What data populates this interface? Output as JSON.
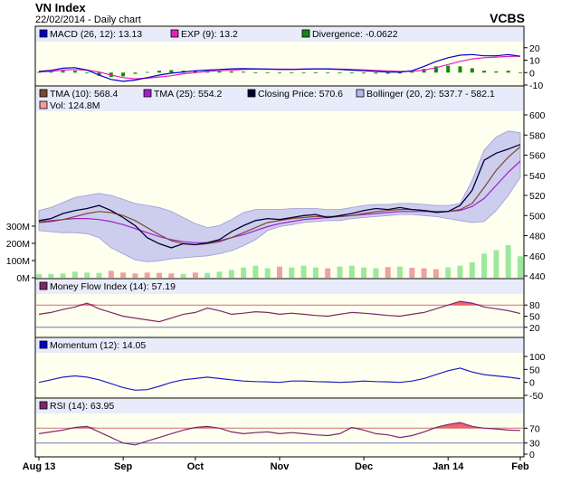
{
  "header": {
    "title": "VN Index",
    "subtitle": "22/02/2014 - Daily chart",
    "brand": "VCBS"
  },
  "colors": {
    "plot_bg": "#fffff0",
    "legend_bg": "#e8ecfa",
    "tma10": "#7b4a2a",
    "tma25": "#a020c8",
    "close": "#000033",
    "bollinger": "#b8b8ec",
    "vol_up": "#9ce89c",
    "vol_down": "#f0a0a0",
    "macd": "#0000cc",
    "exp": "#e020c0",
    "divergence": "#118811",
    "indicator": "#2020a0",
    "zone_fill": "#f06070",
    "level_line": "#d07070"
  },
  "chart_data": [
    {
      "type": "bar",
      "panel": "macd",
      "legend": [
        {
          "icon": "macd-swatch",
          "color": "#0000cc",
          "label": "MACD (26, 12): 13.13"
        },
        {
          "icon": "exp-swatch",
          "color": "#e020c0",
          "label": "EXP (9): 13.2"
        },
        {
          "icon": "divergence-swatch",
          "color": "#118811",
          "label": "Divergence: -0.0622"
        }
      ],
      "y_ticks": [
        "20",
        "10",
        "0",
        "-10"
      ],
      "ylim": [
        -10,
        22
      ],
      "series": [
        {
          "name": "MACD (26, 12)",
          "values": [
            1.0,
            1.8,
            3.5,
            4.0,
            2.0,
            -2.0,
            -5.5,
            -7.0,
            -6.0,
            -4.0,
            -2.0,
            -0.5,
            0.5,
            1.5,
            2.0,
            2.5,
            3.0,
            3.2,
            3.0,
            2.8,
            2.5,
            2.5,
            2.8,
            3.0,
            3.0,
            2.5,
            2.0,
            1.5,
            1.0,
            0.5,
            0.3,
            1.5,
            5.0,
            9.0,
            12.0,
            14.0,
            14.5,
            13.5,
            13.5,
            14.5,
            13.13
          ]
        },
        {
          "name": "EXP (9)",
          "values": [
            0.5,
            1.0,
            2.0,
            2.5,
            2.0,
            0.5,
            -2.0,
            -4.0,
            -5.0,
            -4.5,
            -3.5,
            -2.5,
            -1.0,
            0.0,
            1.0,
            1.5,
            2.0,
            2.5,
            2.8,
            2.9,
            2.8,
            2.7,
            2.8,
            2.9,
            3.0,
            2.9,
            2.6,
            2.2,
            1.8,
            1.4,
            1.0,
            1.0,
            2.0,
            4.0,
            6.5,
            9.0,
            11.0,
            12.0,
            12.5,
            13.0,
            13.2
          ]
        },
        {
          "name": "Divergence",
          "values": [
            0.5,
            0.8,
            1.5,
            1.5,
            0.0,
            -2.5,
            -3.5,
            -3.0,
            -1.0,
            0.5,
            1.5,
            2.0,
            1.5,
            1.5,
            1.0,
            1.0,
            1.0,
            0.7,
            0.2,
            -0.1,
            -0.3,
            -0.2,
            0.0,
            0.1,
            0.0,
            -0.4,
            -0.6,
            -0.7,
            -0.8,
            -0.9,
            -0.7,
            0.5,
            3.0,
            5.0,
            5.5,
            5.0,
            3.5,
            1.5,
            1.0,
            1.5,
            -0.0622
          ]
        }
      ]
    },
    {
      "type": "line",
      "panel": "price",
      "legend": [
        {
          "icon": "tma10-swatch",
          "color": "#7b4a2a",
          "label": "TMA (10): 568.4"
        },
        {
          "icon": "tma25-swatch",
          "color": "#a020c8",
          "label": "TMA (25): 554.2"
        },
        {
          "icon": "close-swatch",
          "color": "#000033",
          "label": "Closing Price: 570.6"
        },
        {
          "icon": "bollinger-swatch",
          "color": "#b8b8ec",
          "label": "Bollinger (20, 2): 537.7 - 582.1"
        },
        {
          "icon": "vol-swatch",
          "color": "#f0a0a0",
          "label": "Vol: 124.8M"
        }
      ],
      "y_ticks": [
        "600",
        "580",
        "560",
        "540",
        "520",
        "500",
        "480",
        "460",
        "440"
      ],
      "ylim": [
        440,
        600
      ],
      "vol_ticks": [
        "300M",
        "200M",
        "100M",
        "0M"
      ],
      "vol_lim": [
        0,
        300
      ],
      "series": [
        {
          "name": "Closing Price",
          "values": [
            495,
            497,
            502,
            505,
            507,
            510,
            505,
            498,
            490,
            478,
            472,
            468,
            472,
            471,
            473,
            476,
            484,
            490,
            495,
            497,
            496,
            498,
            500,
            501,
            498,
            500,
            502,
            505,
            507,
            506,
            508,
            506,
            505,
            503,
            504,
            510,
            525,
            555,
            562,
            566,
            570.6
          ]
        },
        {
          "name": "TMA (10)",
          "values": [
            493,
            494,
            496,
            499,
            502,
            504,
            503,
            500,
            495,
            488,
            481,
            475,
            472,
            471,
            472,
            474,
            478,
            483,
            488,
            493,
            495,
            497,
            498,
            499,
            499,
            499,
            500,
            502,
            504,
            505,
            506,
            506,
            505,
            504,
            504,
            506,
            512,
            528,
            545,
            558,
            568.4
          ]
        },
        {
          "name": "TMA (25)",
          "values": [
            494,
            495,
            496,
            497,
            497,
            496,
            494,
            491,
            487,
            483,
            479,
            476,
            474,
            473,
            473,
            475,
            478,
            481,
            485,
            489,
            492,
            494,
            496,
            497,
            498,
            499,
            500,
            501,
            502,
            503,
            504,
            504,
            504,
            504,
            504,
            505,
            509,
            517,
            530,
            543,
            554.2
          ]
        },
        {
          "name": "Bollinger Upper",
          "values": [
            505,
            508,
            513,
            518,
            520,
            522,
            520,
            516,
            512,
            510,
            508,
            504,
            498,
            492,
            488,
            490,
            496,
            503,
            506,
            506,
            506,
            507,
            507,
            507,
            506,
            506,
            508,
            510,
            511,
            511,
            512,
            512,
            511,
            510,
            510,
            512,
            535,
            565,
            578,
            584,
            582.1
          ]
        },
        {
          "name": "Bollinger Lower",
          "values": [
            485,
            484,
            483,
            483,
            482,
            478,
            468,
            462,
            456,
            454,
            455,
            457,
            458,
            459,
            460,
            462,
            465,
            470,
            476,
            485,
            489,
            491,
            493,
            494,
            495,
            495,
            497,
            498,
            499,
            500,
            501,
            501,
            500,
            499,
            497,
            495,
            493,
            494,
            505,
            520,
            537.7
          ]
        },
        {
          "name": "Vol",
          "values": [
            20,
            22,
            25,
            35,
            30,
            28,
            40,
            30,
            25,
            30,
            28,
            25,
            22,
            30,
            28,
            35,
            45,
            60,
            70,
            55,
            65,
            60,
            70,
            60,
            55,
            65,
            70,
            60,
            55,
            62,
            65,
            58,
            55,
            50,
            60,
            70,
            90,
            140,
            160,
            190,
            124.8
          ]
        }
      ]
    },
    {
      "type": "line",
      "panel": "mfi",
      "legend": [
        {
          "icon": "mfi-swatch",
          "color": "#7a2a6a",
          "label": "Money Flow Index (14): 57.19"
        }
      ],
      "y_ticks": [
        "80",
        "50",
        "20"
      ],
      "ylim": [
        0,
        100
      ],
      "levels": [
        80,
        20
      ],
      "series": [
        {
          "name": "Money Flow Index (14)",
          "values": [
            55,
            60,
            68,
            75,
            85,
            70,
            60,
            50,
            45,
            40,
            35,
            45,
            55,
            60,
            72,
            65,
            55,
            58,
            62,
            60,
            55,
            58,
            55,
            52,
            50,
            55,
            60,
            58,
            55,
            52,
            50,
            55,
            60,
            70,
            80,
            90,
            85,
            75,
            70,
            65,
            57.19
          ]
        }
      ]
    },
    {
      "type": "line",
      "panel": "momentum",
      "legend": [
        {
          "icon": "momentum-swatch",
          "color": "#0000cc",
          "label": "Momentum (12): 14.05"
        }
      ],
      "y_ticks": [
        "100",
        "50",
        "0",
        "-50"
      ],
      "ylim": [
        -50,
        100
      ],
      "series": [
        {
          "name": "Momentum (12)",
          "values": [
            0,
            10,
            20,
            25,
            20,
            10,
            -5,
            -20,
            -30,
            -28,
            -15,
            0,
            10,
            15,
            20,
            15,
            10,
            5,
            3,
            2,
            0,
            5,
            5,
            3,
            2,
            0,
            2,
            5,
            3,
            2,
            0,
            5,
            15,
            30,
            45,
            55,
            40,
            30,
            25,
            20,
            14.05
          ]
        }
      ]
    },
    {
      "type": "line",
      "panel": "rsi",
      "legend": [
        {
          "icon": "rsi-swatch",
          "color": "#7a2a6a",
          "label": "RSI (14): 63.95"
        }
      ],
      "y_ticks": [
        "70",
        "30",
        "0"
      ],
      "ylim": [
        0,
        100
      ],
      "levels": [
        70,
        30
      ],
      "series": [
        {
          "name": "RSI (14)",
          "values": [
            55,
            60,
            65,
            72,
            75,
            60,
            45,
            30,
            25,
            35,
            45,
            55,
            65,
            72,
            75,
            70,
            60,
            55,
            58,
            60,
            55,
            58,
            55,
            52,
            50,
            55,
            72,
            65,
            55,
            52,
            45,
            50,
            60,
            72,
            80,
            85,
            75,
            70,
            68,
            65,
            63.95
          ]
        }
      ]
    }
  ],
  "x_axis": {
    "labels": [
      {
        "label": "Aug 13",
        "index": 0
      },
      {
        "label": "Sep",
        "index": 7
      },
      {
        "label": "Oct",
        "index": 13
      },
      {
        "label": "Nov",
        "index": 20
      },
      {
        "label": "Dec",
        "index": 27
      },
      {
        "label": "Jan 14",
        "index": 34
      },
      {
        "label": "Feb",
        "index": 40
      }
    ]
  }
}
